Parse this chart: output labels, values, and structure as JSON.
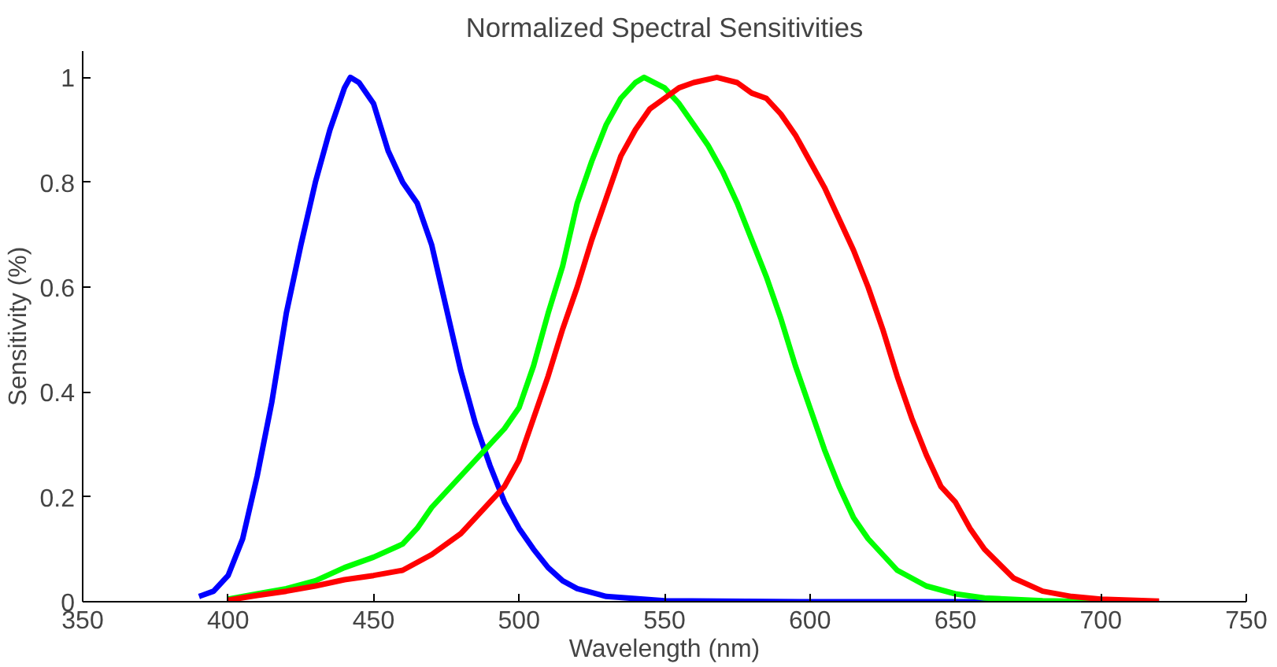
{
  "chart_data": {
    "type": "line",
    "title": "Normalized Spectral Sensitivities",
    "xlabel": "Wavelength (nm)",
    "ylabel": "Sensitivity (%)",
    "xlim": [
      350,
      750
    ],
    "xticks": [
      350,
      400,
      450,
      500,
      550,
      600,
      650,
      700,
      750
    ],
    "ylim": [
      0,
      1.05
    ],
    "yticks": [
      0,
      0.2,
      0.4,
      0.6,
      0.8,
      1
    ],
    "grid": false,
    "line_style": "solid",
    "series": [
      {
        "color": "#0000ff",
        "x": [
          390,
          395,
          400,
          405,
          410,
          415,
          420,
          425,
          430,
          435,
          440,
          442,
          445,
          450,
          455,
          460,
          465,
          470,
          475,
          480,
          485,
          490,
          495,
          500,
          505,
          510,
          515,
          520,
          530,
          550,
          600,
          650,
          720
        ],
        "values": [
          0.01,
          0.02,
          0.05,
          0.12,
          0.24,
          0.38,
          0.55,
          0.68,
          0.8,
          0.9,
          0.98,
          1.0,
          0.99,
          0.95,
          0.86,
          0.8,
          0.76,
          0.68,
          0.56,
          0.44,
          0.34,
          0.26,
          0.19,
          0.14,
          0.1,
          0.065,
          0.04,
          0.025,
          0.01,
          0.002,
          0,
          0,
          0
        ]
      },
      {
        "color": "#00ff00",
        "x": [
          400,
          410,
          420,
          430,
          440,
          450,
          460,
          465,
          470,
          480,
          490,
          495,
          500,
          505,
          510,
          515,
          520,
          525,
          530,
          535,
          540,
          543,
          550,
          555,
          560,
          565,
          570,
          575,
          580,
          585,
          590,
          595,
          600,
          605,
          610,
          615,
          620,
          630,
          640,
          650,
          660,
          680,
          700
        ],
        "values": [
          0.005,
          0.015,
          0.025,
          0.04,
          0.065,
          0.085,
          0.11,
          0.14,
          0.18,
          0.24,
          0.3,
          0.33,
          0.37,
          0.45,
          0.55,
          0.64,
          0.76,
          0.84,
          0.91,
          0.96,
          0.99,
          1.0,
          0.98,
          0.95,
          0.91,
          0.87,
          0.82,
          0.76,
          0.69,
          0.62,
          0.54,
          0.45,
          0.37,
          0.29,
          0.22,
          0.16,
          0.12,
          0.06,
          0.03,
          0.015,
          0.007,
          0.002,
          0
        ]
      },
      {
        "color": "#ff0000",
        "x": [
          400,
          410,
          420,
          430,
          440,
          450,
          460,
          470,
          480,
          490,
          495,
          500,
          505,
          510,
          515,
          520,
          525,
          530,
          535,
          540,
          545,
          550,
          555,
          560,
          568,
          575,
          580,
          585,
          590,
          595,
          600,
          605,
          610,
          615,
          620,
          625,
          630,
          635,
          640,
          645,
          650,
          655,
          660,
          670,
          680,
          690,
          700,
          720
        ],
        "values": [
          0.003,
          0.012,
          0.02,
          0.03,
          0.042,
          0.05,
          0.06,
          0.09,
          0.13,
          0.19,
          0.22,
          0.27,
          0.35,
          0.43,
          0.52,
          0.6,
          0.69,
          0.77,
          0.85,
          0.9,
          0.94,
          0.96,
          0.98,
          0.99,
          1.0,
          0.99,
          0.97,
          0.96,
          0.93,
          0.89,
          0.84,
          0.79,
          0.73,
          0.67,
          0.6,
          0.52,
          0.43,
          0.35,
          0.28,
          0.22,
          0.19,
          0.14,
          0.1,
          0.045,
          0.02,
          0.01,
          0.005,
          0.001
        ]
      }
    ]
  }
}
